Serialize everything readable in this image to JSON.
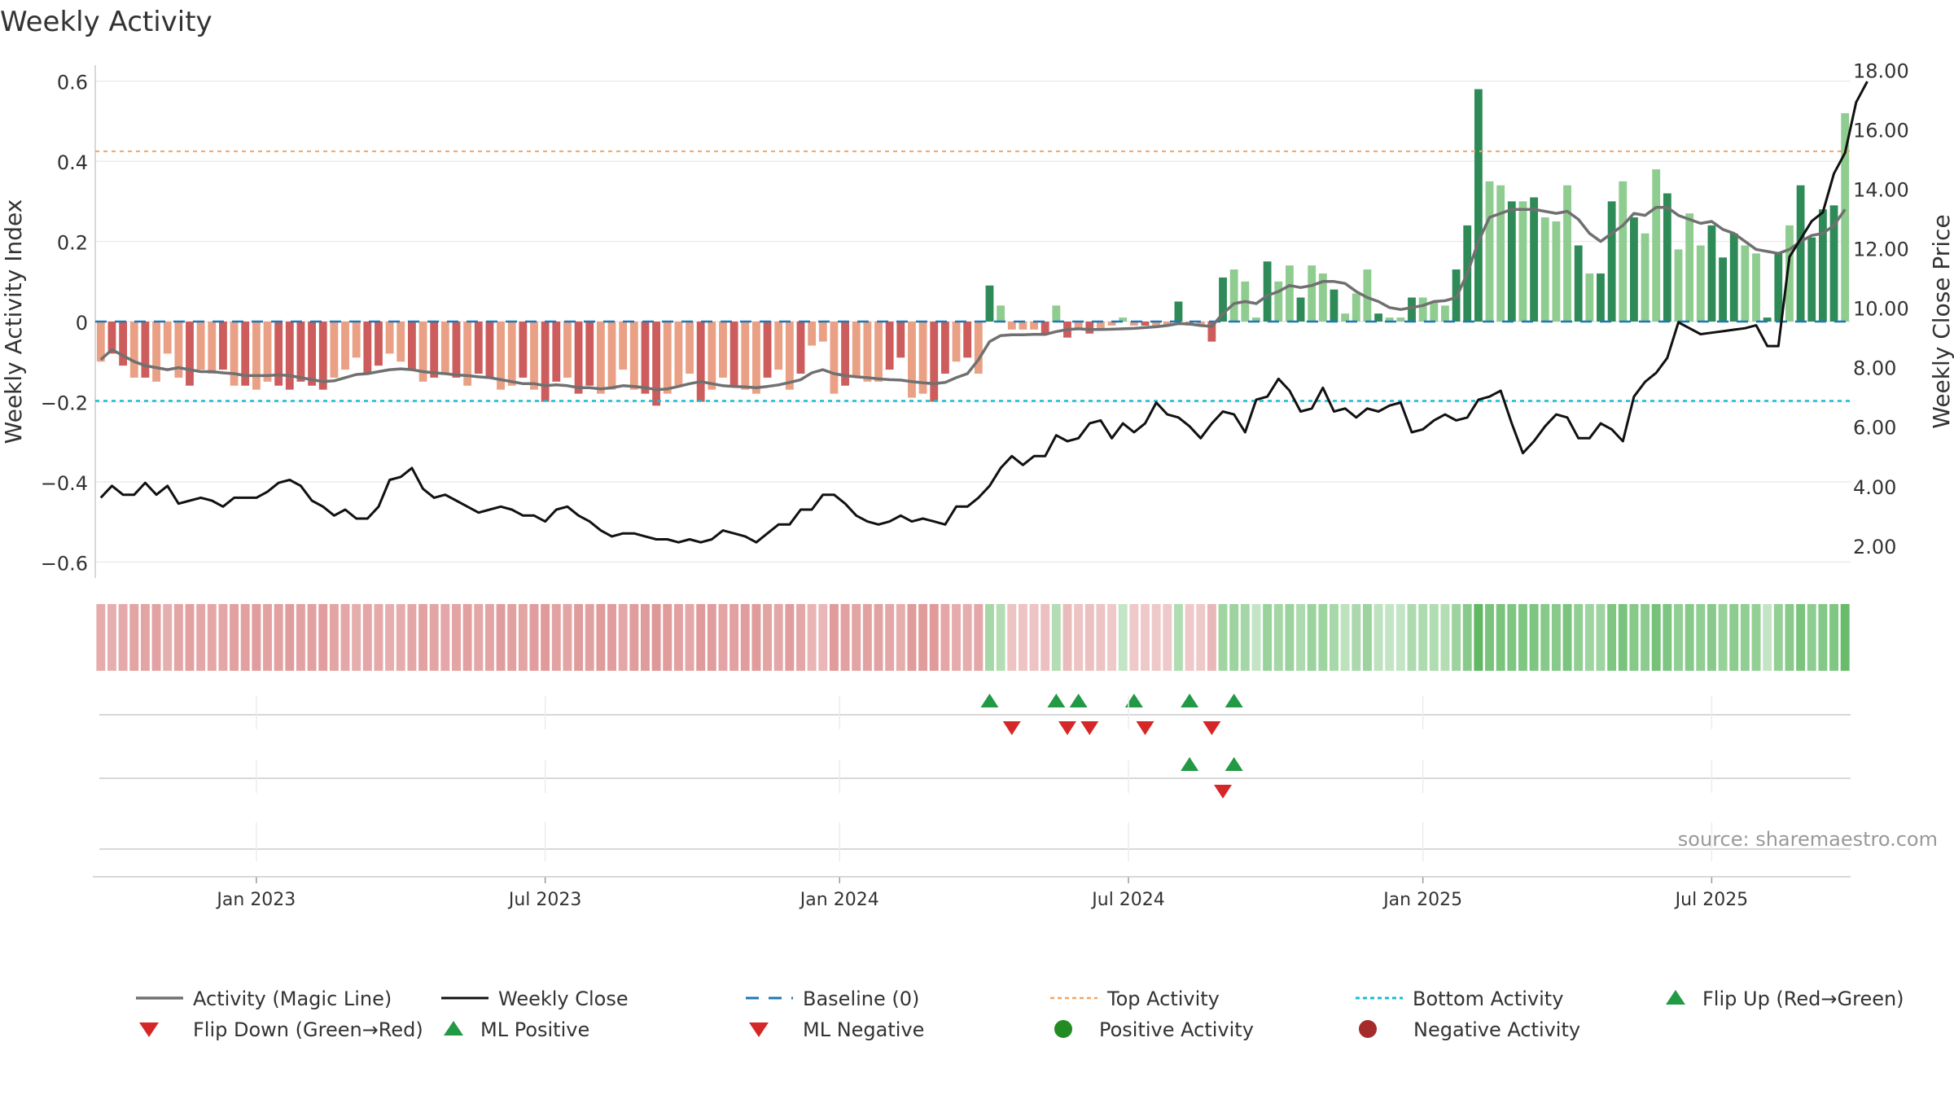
{
  "colors": {
    "green_dark": "#2e8b57",
    "green_light": "#8fcc8f",
    "red_dark": "#cd5c5c",
    "red_light": "#e9a085",
    "magic_line": "#707070",
    "close_line": "#111111",
    "baseline": "#1f77b4",
    "top_line": "#f4a460",
    "bottom_line": "#17becf",
    "marker_up": "#229944",
    "marker_down": "#d62728",
    "strip_green": "#4caf50",
    "strip_red": "#cd5c5c"
  },
  "chart_data": {
    "type": "bar",
    "title": "Weekly Activity",
    "ylabel": "Weekly Activity Index",
    "y2label": "Weekly Close Price",
    "ylim": [
      -0.64,
      0.64
    ],
    "y2lim": [
      0.9,
      18.15
    ],
    "yticks": [
      {
        "v": 0.6,
        "label": "0.6"
      },
      {
        "v": 0.4,
        "label": "0.4"
      },
      {
        "v": 0.2,
        "label": "0.2"
      },
      {
        "v": 0.0,
        "label": "0"
      },
      {
        "v": -0.2,
        "label": "−0.2"
      },
      {
        "v": -0.4,
        "label": "−0.4"
      },
      {
        "v": -0.6,
        "label": "−0.6"
      }
    ],
    "y2ticks": [
      {
        "v": 18,
        "label": "18.00"
      },
      {
        "v": 16,
        "label": "16.00"
      },
      {
        "v": 14,
        "label": "14.00"
      },
      {
        "v": 12,
        "label": "12.00"
      },
      {
        "v": 10,
        "label": "10.00"
      },
      {
        "v": 8,
        "label": "8.00"
      },
      {
        "v": 6,
        "label": "6.00"
      },
      {
        "v": 4,
        "label": "4.00"
      },
      {
        "v": 2,
        "label": "2.00"
      }
    ],
    "xticks": [
      {
        "week": 14.5,
        "label": "Jan 2023"
      },
      {
        "week": 40.5,
        "label": "Jul 2023"
      },
      {
        "week": 67,
        "label": "Jan 2024"
      },
      {
        "week": 93,
        "label": "Jul 2024"
      },
      {
        "week": 119.5,
        "label": "Jan 2025"
      },
      {
        "week": 145.5,
        "label": "Jul 2025"
      }
    ],
    "top_activity": 0.425,
    "bottom_activity": -0.198,
    "baseline": 0,
    "activity": [
      -0.1,
      -0.08,
      -0.11,
      -0.14,
      -0.14,
      -0.15,
      -0.08,
      -0.14,
      -0.16,
      -0.12,
      -0.13,
      -0.12,
      -0.16,
      -0.16,
      -0.17,
      -0.15,
      -0.16,
      -0.17,
      -0.15,
      -0.16,
      -0.17,
      -0.14,
      -0.12,
      -0.09,
      -0.13,
      -0.11,
      -0.08,
      -0.1,
      -0.12,
      -0.15,
      -0.14,
      -0.13,
      -0.14,
      -0.16,
      -0.13,
      -0.14,
      -0.17,
      -0.16,
      -0.14,
      -0.17,
      -0.2,
      -0.15,
      -0.14,
      -0.18,
      -0.16,
      -0.18,
      -0.17,
      -0.12,
      -0.17,
      -0.18,
      -0.21,
      -0.18,
      -0.16,
      -0.13,
      -0.2,
      -0.17,
      -0.14,
      -0.16,
      -0.17,
      -0.18,
      -0.14,
      -0.12,
      -0.17,
      -0.13,
      -0.06,
      -0.05,
      -0.18,
      -0.16,
      -0.14,
      -0.15,
      -0.15,
      -0.12,
      -0.09,
      -0.19,
      -0.18,
      -0.2,
      -0.13,
      -0.1,
      -0.09,
      -0.13,
      0.09,
      0.04,
      -0.02,
      -0.02,
      -0.02,
      -0.03,
      0.04,
      -0.04,
      -0.02,
      -0.03,
      -0.02,
      -0.01,
      0.01,
      -0.01,
      -0.01,
      -0.01,
      -0.01,
      0.05,
      -0.01,
      -0.01,
      -0.05,
      0.11,
      0.13,
      0.1,
      0.01,
      0.15,
      0.1,
      0.14,
      0.06,
      0.14,
      0.12,
      0.08,
      0.02,
      0.07,
      0.13,
      0.02,
      0.01,
      0.01,
      0.06,
      0.06,
      0.05,
      0.04,
      0.13,
      0.24,
      0.58,
      0.35,
      0.34,
      0.3,
      0.3,
      0.31,
      0.26,
      0.25,
      0.34,
      0.19,
      0.12,
      0.12,
      0.3,
      0.35,
      0.26,
      0.22,
      0.38,
      0.32,
      0.18,
      0.27,
      0.19,
      0.24,
      0.16,
      0.22,
      0.19,
      0.17,
      0.01,
      0.17,
      0.24,
      0.34,
      0.21,
      0.28,
      0.29,
      0.52
    ],
    "dark_weeks": [
      1,
      2,
      4,
      8,
      11,
      13,
      16,
      17,
      18,
      19,
      20,
      24,
      25,
      28,
      30,
      32,
      34,
      35,
      38,
      40,
      41,
      43,
      44,
      49,
      50,
      54,
      57,
      60,
      63,
      67,
      71,
      72,
      75,
      76,
      78,
      80,
      85,
      87,
      89,
      94,
      97,
      100,
      101,
      105,
      108,
      111,
      115,
      118,
      122,
      123,
      124,
      127,
      129,
      133,
      135,
      136,
      138,
      141,
      145,
      146,
      147,
      150,
      151,
      153,
      154,
      155,
      156
    ],
    "magic_line": [
      -0.095,
      -0.07,
      -0.085,
      -0.1,
      -0.11,
      -0.115,
      -0.12,
      -0.115,
      -0.12,
      -0.125,
      -0.125,
      -0.128,
      -0.13,
      -0.135,
      -0.135,
      -0.135,
      -0.133,
      -0.135,
      -0.14,
      -0.145,
      -0.15,
      -0.148,
      -0.14,
      -0.132,
      -0.13,
      -0.125,
      -0.12,
      -0.118,
      -0.12,
      -0.125,
      -0.128,
      -0.13,
      -0.133,
      -0.135,
      -0.138,
      -0.14,
      -0.145,
      -0.15,
      -0.155,
      -0.155,
      -0.16,
      -0.158,
      -0.16,
      -0.165,
      -0.165,
      -0.168,
      -0.165,
      -0.16,
      -0.162,
      -0.165,
      -0.17,
      -0.168,
      -0.162,
      -0.155,
      -0.15,
      -0.155,
      -0.16,
      -0.162,
      -0.163,
      -0.165,
      -0.162,
      -0.158,
      -0.152,
      -0.145,
      -0.128,
      -0.12,
      -0.13,
      -0.135,
      -0.138,
      -0.14,
      -0.143,
      -0.145,
      -0.146,
      -0.15,
      -0.153,
      -0.155,
      -0.152,
      -0.14,
      -0.13,
      -0.095,
      -0.05,
      -0.035,
      -0.033,
      -0.033,
      -0.032,
      -0.032,
      -0.025,
      -0.02,
      -0.018,
      -0.02,
      -0.02,
      -0.019,
      -0.018,
      -0.017,
      -0.015,
      -0.013,
      -0.01,
      -0.005,
      -0.006,
      -0.01,
      -0.012,
      0.02,
      0.045,
      0.05,
      0.045,
      0.065,
      0.075,
      0.09,
      0.085,
      0.09,
      0.1,
      0.1,
      0.095,
      0.075,
      0.06,
      0.05,
      0.035,
      0.03,
      0.035,
      0.04,
      0.05,
      0.052,
      0.06,
      0.12,
      0.2,
      0.26,
      0.27,
      0.28,
      0.28,
      0.28,
      0.275,
      0.27,
      0.275,
      0.255,
      0.22,
      0.2,
      0.22,
      0.24,
      0.27,
      0.265,
      0.285,
      0.285,
      0.265,
      0.255,
      0.245,
      0.25,
      0.23,
      0.22,
      0.2,
      0.18,
      0.175,
      0.17,
      0.18,
      0.2,
      0.215,
      0.22,
      0.24,
      0.28
    ],
    "close": [
      3.6,
      4.0,
      3.7,
      3.7,
      4.1,
      3.7,
      4.0,
      3.4,
      3.5,
      3.6,
      3.5,
      3.3,
      3.6,
      3.6,
      3.6,
      3.8,
      4.1,
      4.2,
      4.0,
      3.5,
      3.3,
      3.0,
      3.2,
      2.9,
      2.9,
      3.3,
      4.2,
      4.3,
      4.6,
      3.9,
      3.6,
      3.7,
      3.5,
      3.3,
      3.1,
      3.2,
      3.3,
      3.2,
      3.0,
      3.0,
      2.8,
      3.2,
      3.3,
      3.0,
      2.8,
      2.5,
      2.3,
      2.4,
      2.4,
      2.3,
      2.2,
      2.2,
      2.1,
      2.2,
      2.1,
      2.2,
      2.5,
      2.4,
      2.3,
      2.1,
      2.4,
      2.7,
      2.7,
      3.2,
      3.2,
      3.7,
      3.7,
      3.4,
      3.0,
      2.8,
      2.7,
      2.8,
      3.0,
      2.8,
      2.9,
      2.8,
      2.7,
      3.3,
      3.3,
      3.6,
      4.0,
      4.6,
      5.0,
      4.7,
      5.0,
      5.0,
      5.7,
      5.5,
      5.6,
      6.1,
      6.2,
      5.6,
      6.1,
      5.8,
      6.1,
      6.8,
      6.4,
      6.3,
      6.0,
      5.6,
      6.1,
      6.5,
      6.4,
      5.8,
      6.9,
      7.0,
      7.6,
      7.2,
      6.5,
      6.6,
      7.3,
      6.5,
      6.6,
      6.3,
      6.6,
      6.5,
      6.7,
      6.8,
      5.8,
      5.9,
      6.2,
      6.4,
      6.2,
      6.3,
      6.9,
      7.0,
      7.2,
      6.1,
      5.1,
      5.5,
      6.0,
      6.4,
      6.3,
      5.6,
      5.6,
      6.1,
      5.9,
      5.5,
      7.0,
      7.5,
      7.8,
      8.3,
      9.5,
      9.3,
      9.1,
      9.15,
      9.2,
      9.25,
      9.3,
      9.4,
      8.7,
      8.7,
      11.7,
      12.3,
      12.9,
      13.2,
      14.5,
      15.2,
      16.9,
      17.6
    ],
    "mid_strip_weeks": [],
    "marker_rows": [
      {
        "name": "flip-row",
        "up": [
          80,
          86,
          88,
          93,
          98,
          102
        ],
        "down": [
          82,
          87,
          89,
          94,
          100
        ]
      },
      {
        "name": "ml-row",
        "up": [
          98,
          102
        ],
        "down": [
          101
        ]
      },
      {
        "name": "activity-row",
        "up": [],
        "down": []
      }
    ],
    "source": "source: sharemaestro.com",
    "legend": [
      {
        "key": "magic",
        "label": "Activity (Magic Line)"
      },
      {
        "key": "close",
        "label": "Weekly Close"
      },
      {
        "key": "baseline",
        "label": "Baseline (0)"
      },
      {
        "key": "top",
        "label": "Top Activity"
      },
      {
        "key": "bottom",
        "label": "Bottom Activity"
      },
      {
        "key": "flipup",
        "label": "Flip Up (Red→Green)"
      },
      {
        "key": "flipdown",
        "label": "Flip Down (Green→Red)"
      },
      {
        "key": "mlpos",
        "label": "ML Positive"
      },
      {
        "key": "mlneg",
        "label": "ML Negative"
      },
      {
        "key": "posact",
        "label": "Positive Activity"
      },
      {
        "key": "negact",
        "label": "Negative Activity"
      }
    ]
  }
}
